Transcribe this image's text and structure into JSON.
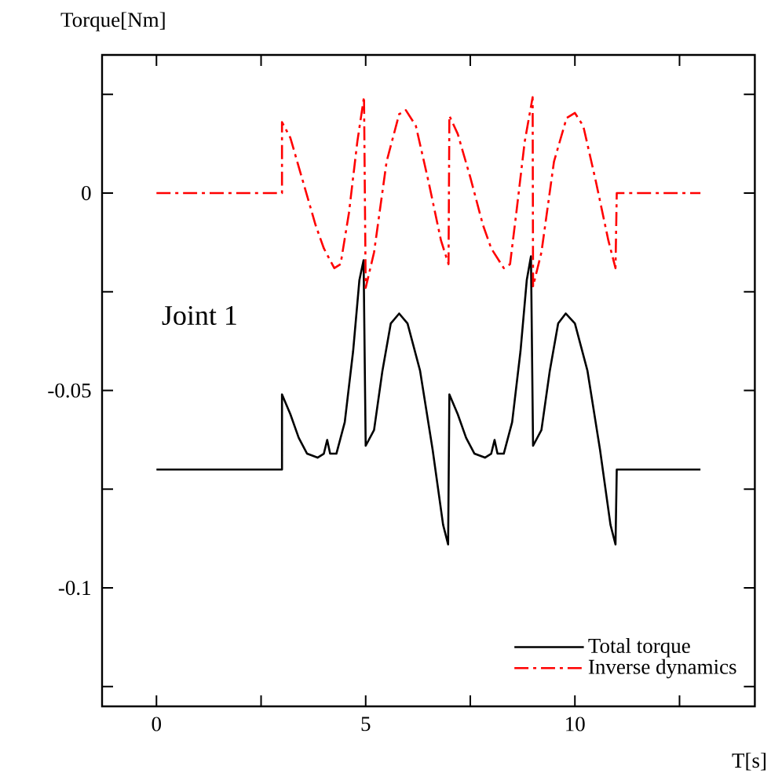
{
  "chart_data": {
    "type": "line",
    "xlabel": "T[s]",
    "ylabel": "Torque[Nm]",
    "annotations": [
      "Joint 1"
    ],
    "xlim": [
      -1.3,
      14.3
    ],
    "ylim": [
      -0.13,
      0.035
    ],
    "xticks": [
      0,
      {
        "value": 2.5,
        "label": null
      },
      5,
      {
        "value": 7.5,
        "label": null
      },
      10,
      {
        "value": 12.5,
        "label": null
      }
    ],
    "yticks": [
      {
        "value": -0.125,
        "label": null
      },
      -0.1,
      {
        "value": -0.075,
        "label": null
      },
      -0.05,
      {
        "value": -0.025,
        "label": null
      },
      0,
      {
        "value": 0.025,
        "label": null
      }
    ],
    "grid": false,
    "legend": "bottom right",
    "marker": "none",
    "series": [
      {
        "name": "Total torque",
        "color": "#000000",
        "line_style": "solid",
        "x": [
          0,
          3,
          3,
          3.2,
          3.4,
          3.6,
          3.85,
          4.0,
          4.08,
          4.15,
          4.3,
          4.5,
          4.7,
          4.85,
          4.95,
          5.0,
          5.2,
          5.4,
          5.6,
          5.8,
          6.0,
          6.3,
          6.6,
          6.85,
          6.97,
          7.0,
          7.2,
          7.4,
          7.6,
          7.85,
          8.0,
          8.08,
          8.15,
          8.3,
          8.5,
          8.7,
          8.85,
          8.95,
          9.0,
          9.2,
          9.4,
          9.6,
          9.78,
          10.0,
          10.3,
          10.6,
          10.85,
          10.97,
          11.0,
          13
        ],
        "values": [
          -0.07,
          -0.07,
          -0.051,
          -0.056,
          -0.062,
          -0.066,
          -0.067,
          -0.066,
          -0.0625,
          -0.066,
          -0.066,
          -0.058,
          -0.04,
          -0.022,
          -0.017,
          -0.064,
          -0.06,
          -0.045,
          -0.033,
          -0.0305,
          -0.033,
          -0.045,
          -0.065,
          -0.084,
          -0.089,
          -0.051,
          -0.056,
          -0.062,
          -0.066,
          -0.067,
          -0.066,
          -0.0625,
          -0.066,
          -0.066,
          -0.058,
          -0.04,
          -0.022,
          -0.016,
          -0.064,
          -0.06,
          -0.045,
          -0.033,
          -0.0305,
          -0.033,
          -0.045,
          -0.065,
          -0.084,
          -0.089,
          -0.07,
          -0.07
        ]
      },
      {
        "name": "Inverse dynamics",
        "color": "#ff0000",
        "line_style": "dashdot",
        "x": [
          0,
          3,
          3,
          3.2,
          3.5,
          3.8,
          4.0,
          4.25,
          4.4,
          4.6,
          4.8,
          4.96,
          5.0,
          5.2,
          5.5,
          5.8,
          5.96,
          6.2,
          6.5,
          6.8,
          6.98,
          7.0,
          7.2,
          7.5,
          7.8,
          8.0,
          8.3,
          8.45,
          8.6,
          8.8,
          8.99,
          9.0,
          9.2,
          9.5,
          9.8,
          10.0,
          10.2,
          10.5,
          10.8,
          10.97,
          11.0,
          13
        ],
        "values": [
          0,
          0,
          0.018,
          0.014,
          0.003,
          -0.008,
          -0.014,
          -0.019,
          -0.018,
          -0.005,
          0.013,
          0.0244,
          -0.024,
          -0.015,
          0.008,
          0.02,
          0.021,
          0.017,
          0.003,
          -0.012,
          -0.018,
          0.0196,
          0.015,
          0.004,
          -0.008,
          -0.014,
          -0.019,
          -0.018,
          -0.005,
          0.013,
          0.0243,
          -0.0236,
          -0.015,
          0.008,
          0.019,
          0.0203,
          0.017,
          0.003,
          -0.012,
          -0.019,
          0,
          0
        ]
      }
    ]
  }
}
